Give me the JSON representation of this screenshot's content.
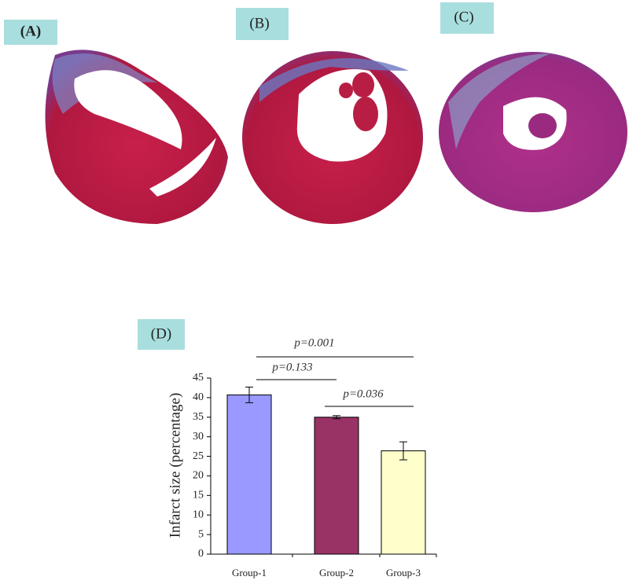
{
  "panels": [
    "(A)",
    "(B)",
    "(C)"
  ],
  "chart_data": {
    "type": "bar",
    "panel_label": "(D)",
    "ylabel": "Infarct size (percentage)",
    "categories": [
      "Group-1",
      "Group-2",
      "Group-3"
    ],
    "values": [
      40.7,
      35,
      26.4
    ],
    "errors": [
      2,
      0.4,
      2.3
    ],
    "colors": [
      "#9999ff",
      "#993366",
      "#ffffcc"
    ],
    "ylim": [
      0,
      45
    ],
    "yticks": [
      0,
      5,
      10,
      15,
      20,
      25,
      30,
      35,
      40,
      45
    ],
    "annotations": [
      "p=0.001",
      "p=0.133",
      "p=0.036"
    ]
  }
}
